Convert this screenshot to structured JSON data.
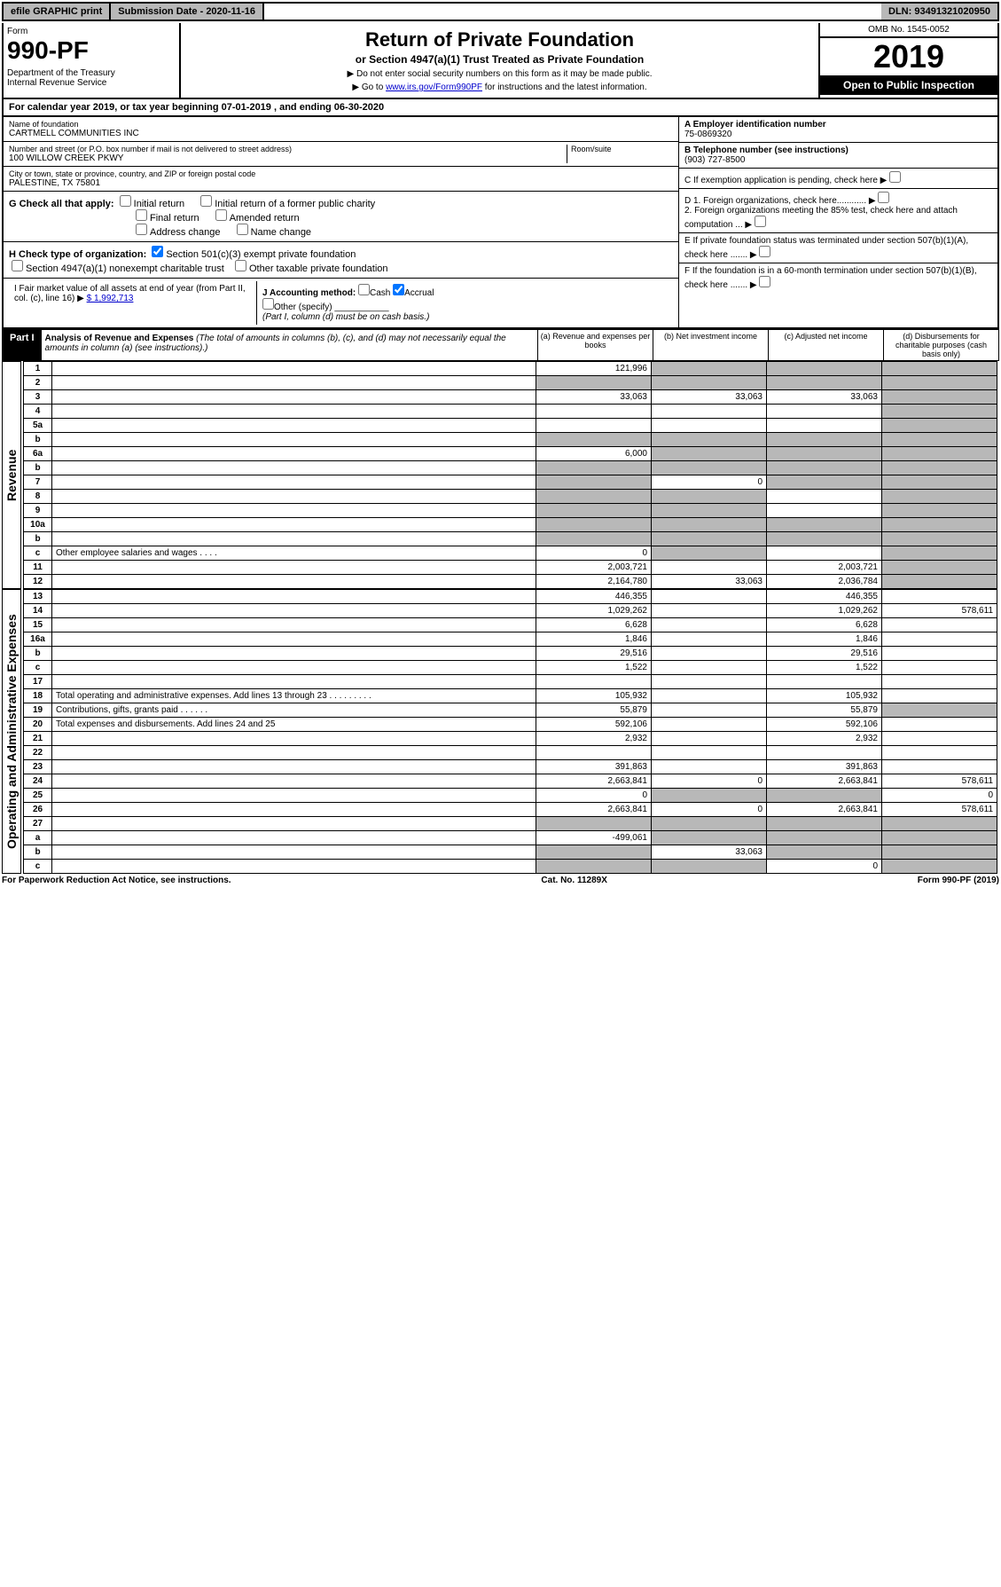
{
  "top": {
    "efile": "efile GRAPHIC print",
    "subdate_label": "Submission Date - 2020-11-16",
    "dln": "DLN: 93491321020950"
  },
  "header": {
    "form_label": "Form",
    "form_num": "990-PF",
    "dept": "Department of the Treasury\nInternal Revenue Service",
    "title": "Return of Private Foundation",
    "subtitle": "or Section 4947(a)(1) Trust Treated as Private Foundation",
    "instr1": "▶ Do not enter social security numbers on this form as it may be made public.",
    "instr2": "▶ Go to www.irs.gov/Form990PF for instructions and the latest information.",
    "instr2_link": "www.irs.gov/Form990PF",
    "omb": "OMB No. 1545-0052",
    "year": "2019",
    "open": "Open to Public Inspection"
  },
  "calendar": "For calendar year 2019, or tax year beginning 07-01-2019 , and ending 06-30-2020",
  "info": {
    "name_lbl": "Name of foundation",
    "name": "CARTMELL COMMUNITIES INC",
    "addr_lbl": "Number and street (or P.O. box number if mail is not delivered to street address)",
    "addr": "100 WILLOW CREEK PKWY",
    "room_lbl": "Room/suite",
    "city_lbl": "City or town, state or province, country, and ZIP or foreign postal code",
    "city": "PALESTINE, TX  75801",
    "ein_lbl": "A Employer identification number",
    "ein": "75-0869320",
    "tel_lbl": "B Telephone number (see instructions)",
    "tel": "(903) 727-8500",
    "c_lbl": "C If exemption application is pending, check here",
    "d1": "D 1. Foreign organizations, check here............",
    "d2": "2. Foreign organizations meeting the 85% test, check here and attach computation ...",
    "e_lbl": "E  If private foundation status was terminated under section 507(b)(1)(A), check here .......",
    "f_lbl": "F  If the foundation is in a 60-month termination under section 507(b)(1)(B), check here .......",
    "g_lbl": "G Check all that apply:",
    "g_opts": [
      "Initial return",
      "Initial return of a former public charity",
      "Final return",
      "Amended return",
      "Address change",
      "Name change"
    ],
    "h_lbl": "H Check type of organization:",
    "h_opt1": "Section 501(c)(3) exempt private foundation",
    "h_opt2": "Section 4947(a)(1) nonexempt charitable trust",
    "h_opt3": "Other taxable private foundation",
    "i_lbl": "I Fair market value of all assets at end of year (from Part II, col. (c), line 16) ▶",
    "i_val": "$  1,992,713",
    "j_lbl": "J Accounting method:",
    "j_cash": "Cash",
    "j_accrual": "Accrual",
    "j_other": "Other (specify)",
    "j_note": "(Part I, column (d) must be on cash basis.)"
  },
  "part1": {
    "label": "Part I",
    "title": "Analysis of Revenue and Expenses",
    "note": "(The total of amounts in columns (b), (c), and (d) may not necessarily equal the amounts in column (a) (see instructions).)",
    "cols": {
      "a": "(a) Revenue and expenses per books",
      "b": "(b) Net investment income",
      "c": "(c) Adjusted net income",
      "d": "(d) Disbursements for charitable purposes (cash basis only)"
    }
  },
  "revenue_label": "Revenue",
  "expenses_label": "Operating and Administrative Expenses",
  "rows": [
    {
      "n": "1",
      "d": "",
      "a": "121,996",
      "b": "",
      "c": "",
      "grey": [
        "b",
        "c",
        "d"
      ]
    },
    {
      "n": "2",
      "d": "",
      "a": "",
      "b": "",
      "c": "",
      "grey": [
        "a",
        "b",
        "c",
        "d"
      ]
    },
    {
      "n": "3",
      "d": "",
      "a": "33,063",
      "b": "33,063",
      "c": "33,063",
      "grey": [
        "d"
      ]
    },
    {
      "n": "4",
      "d": "",
      "a": "",
      "b": "",
      "c": "",
      "grey": [
        "d"
      ]
    },
    {
      "n": "5a",
      "d": "",
      "a": "",
      "b": "",
      "c": "",
      "grey": [
        "d"
      ]
    },
    {
      "n": "b",
      "d": "",
      "a": "",
      "b": "",
      "c": "",
      "grey": [
        "a",
        "b",
        "c",
        "d"
      ]
    },
    {
      "n": "6a",
      "d": "",
      "a": "6,000",
      "b": "",
      "c": "",
      "grey": [
        "b",
        "c",
        "d"
      ]
    },
    {
      "n": "b",
      "d": "",
      "a": "",
      "b": "",
      "c": "",
      "grey": [
        "a",
        "b",
        "c",
        "d"
      ]
    },
    {
      "n": "7",
      "d": "",
      "a": "",
      "b": "0",
      "c": "",
      "grey": [
        "a",
        "c",
        "d"
      ]
    },
    {
      "n": "8",
      "d": "",
      "a": "",
      "b": "",
      "c": "",
      "grey": [
        "a",
        "b",
        "d"
      ]
    },
    {
      "n": "9",
      "d": "",
      "a": "",
      "b": "",
      "c": "",
      "grey": [
        "a",
        "b",
        "d"
      ]
    },
    {
      "n": "10a",
      "d": "",
      "a": "",
      "b": "",
      "c": "",
      "grey": [
        "a",
        "b",
        "c",
        "d"
      ]
    },
    {
      "n": "b",
      "d": "",
      "a": "",
      "b": "",
      "c": "",
      "grey": [
        "a",
        "b",
        "c",
        "d"
      ]
    },
    {
      "n": "c",
      "d": "",
      "a": "0",
      "b": "",
      "c": "",
      "grey": [
        "b",
        "d"
      ]
    },
    {
      "n": "11",
      "d": "",
      "a": "2,003,721",
      "b": "",
      "c": "2,003,721",
      "grey": [
        "d"
      ]
    },
    {
      "n": "12",
      "d": "",
      "a": "2,164,780",
      "b": "33,063",
      "c": "2,036,784",
      "grey": [
        "d"
      ],
      "bold": true
    },
    {
      "n": "13",
      "d": "",
      "a": "446,355",
      "b": "",
      "c": "446,355"
    },
    {
      "n": "14",
      "d": "578,611",
      "a": "1,029,262",
      "b": "",
      "c": "1,029,262"
    },
    {
      "n": "15",
      "d": "",
      "a": "6,628",
      "b": "",
      "c": "6,628"
    },
    {
      "n": "16a",
      "d": "",
      "a": "1,846",
      "b": "",
      "c": "1,846"
    },
    {
      "n": "b",
      "d": "",
      "a": "29,516",
      "b": "",
      "c": "29,516"
    },
    {
      "n": "c",
      "d": "",
      "a": "1,522",
      "b": "",
      "c": "1,522"
    },
    {
      "n": "17",
      "d": "",
      "a": "",
      "b": "",
      "c": ""
    },
    {
      "n": "18",
      "d": "",
      "a": "105,932",
      "b": "",
      "c": "105,932"
    },
    {
      "n": "19",
      "d": "",
      "a": "55,879",
      "b": "",
      "c": "55,879",
      "grey": [
        "d"
      ]
    },
    {
      "n": "20",
      "d": "",
      "a": "592,106",
      "b": "",
      "c": "592,106"
    },
    {
      "n": "21",
      "d": "",
      "a": "2,932",
      "b": "",
      "c": "2,932"
    },
    {
      "n": "22",
      "d": "",
      "a": "",
      "b": "",
      "c": ""
    },
    {
      "n": "23",
      "d": "",
      "a": "391,863",
      "b": "",
      "c": "391,863"
    },
    {
      "n": "24",
      "d": "578,611",
      "a": "2,663,841",
      "b": "0",
      "c": "2,663,841",
      "bold": true
    },
    {
      "n": "25",
      "d": "0",
      "a": "0",
      "b": "",
      "c": "",
      "grey": [
        "b",
        "c"
      ]
    },
    {
      "n": "26",
      "d": "578,611",
      "a": "2,663,841",
      "b": "0",
      "c": "2,663,841",
      "bold": true
    },
    {
      "n": "27",
      "d": "",
      "a": "",
      "b": "",
      "c": "",
      "grey": [
        "a",
        "b",
        "c",
        "d"
      ]
    },
    {
      "n": "a",
      "d": "",
      "a": "-499,061",
      "b": "",
      "c": "",
      "grey": [
        "b",
        "c",
        "d"
      ],
      "bold": true
    },
    {
      "n": "b",
      "d": "",
      "a": "",
      "b": "33,063",
      "c": "",
      "grey": [
        "a",
        "c",
        "d"
      ],
      "bold": true
    },
    {
      "n": "c",
      "d": "",
      "a": "",
      "b": "",
      "c": "0",
      "grey": [
        "a",
        "b",
        "d"
      ],
      "bold": true
    }
  ],
  "footer": {
    "left": "For Paperwork Reduction Act Notice, see instructions.",
    "center": "Cat. No. 11289X",
    "right": "Form 990-PF (2019)"
  }
}
